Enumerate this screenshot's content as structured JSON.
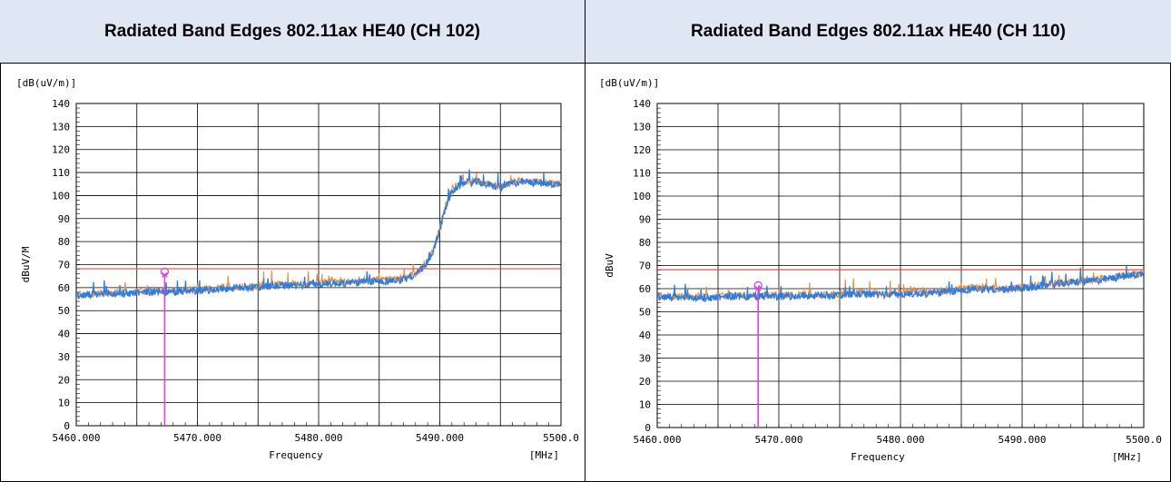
{
  "headers": [
    "Radiated Band Edges 802.11ax HE40 (CH 102)",
    "Radiated Band Edges 802.11ax HE40 (CH 110)"
  ],
  "chart_data": [
    {
      "type": "line",
      "title": "Radiated Band Edges 802.11ax HE40 (CH 102)",
      "unit_label": "[dB(uV/m)]",
      "ylabel": "dBuV/M",
      "xlabel": "Frequency",
      "x_unit": "[MHz]",
      "xlim": [
        5460.0,
        5500.0
      ],
      "ylim": [
        0,
        140
      ],
      "x_ticks": [
        "5460.000",
        "5470.000",
        "5480.000",
        "5490.000",
        "5500.0"
      ],
      "y_ticks": [
        "140",
        "130",
        "120",
        "110",
        "100",
        "90",
        "80",
        "70",
        "60",
        "50",
        "40",
        "30",
        "20",
        "10",
        "0"
      ],
      "limit_line": 68.2,
      "limit_color": "#e05050",
      "marker": {
        "x": 5467.3,
        "y": 66.5,
        "color": "#e040e0"
      },
      "series": [
        {
          "color": "#f08a3c",
          "x": [
            5460,
            5462,
            5464,
            5466,
            5468,
            5470,
            5472,
            5474,
            5476,
            5478,
            5480,
            5482,
            5484,
            5486,
            5487,
            5488,
            5489,
            5489.5,
            5490,
            5490.5,
            5491,
            5492,
            5493,
            5494,
            5495,
            5496,
            5497,
            5498,
            5499,
            5500
          ],
          "values": [
            57,
            57.5,
            58,
            58.5,
            58.5,
            59,
            60,
            60.5,
            61,
            61.5,
            62,
            62.5,
            63,
            63.5,
            64,
            66,
            72,
            77,
            86,
            96,
            103,
            106,
            106.5,
            105,
            104,
            106,
            106.5,
            106,
            105.5,
            105.5
          ]
        },
        {
          "color": "#2a7ee0",
          "x": [
            5460,
            5462,
            5464,
            5466,
            5468,
            5470,
            5472,
            5474,
            5476,
            5478,
            5480,
            5482,
            5484,
            5486,
            5487,
            5488,
            5489,
            5489.5,
            5490,
            5490.5,
            5491,
            5492,
            5493,
            5494,
            5495,
            5496,
            5497,
            5498,
            5499,
            5500
          ],
          "values": [
            56.5,
            57,
            57.5,
            58,
            58,
            58.5,
            59.5,
            60,
            60.5,
            61,
            61.5,
            62,
            62.5,
            63,
            63.5,
            65.5,
            71,
            76,
            85,
            95,
            102,
            105.5,
            106,
            104.5,
            103.5,
            105.5,
            106,
            105.5,
            105,
            105
          ]
        }
      ]
    },
    {
      "type": "line",
      "title": "Radiated Band Edges 802.11ax HE40 (CH 110)",
      "unit_label": "[dB(uV/m)]",
      "ylabel": "dBuV",
      "xlabel": "Frequency",
      "x_unit": "[MHz]",
      "xlim": [
        5460.0,
        5500.0
      ],
      "ylim": [
        0,
        140
      ],
      "x_ticks": [
        "5460.000",
        "5470.000",
        "5480.000",
        "5490.000",
        "5500.0"
      ],
      "y_ticks": [
        "140",
        "130",
        "120",
        "110",
        "100",
        "90",
        "80",
        "70",
        "60",
        "50",
        "40",
        "30",
        "20",
        "10",
        "0"
      ],
      "limit_line": 68.2,
      "limit_color": "#e05050",
      "marker": {
        "x": 5468.3,
        "y": 61.0,
        "color": "#e040e0"
      },
      "series": [
        {
          "color": "#f08a3c",
          "x": [
            5460,
            5462,
            5464,
            5466,
            5468,
            5470,
            5472,
            5474,
            5476,
            5478,
            5480,
            5482,
            5484,
            5486,
            5488,
            5490,
            5492,
            5494,
            5496,
            5498,
            5500
          ],
          "values": [
            57,
            56.5,
            56.5,
            57,
            57,
            57,
            57.5,
            57.5,
            58,
            58,
            58,
            58.5,
            59,
            60.5,
            60,
            60.5,
            62,
            63,
            64,
            65.5,
            67
          ]
        },
        {
          "color": "#2a7ee0",
          "x": [
            5460,
            5462,
            5464,
            5466,
            5468,
            5470,
            5472,
            5474,
            5476,
            5478,
            5480,
            5482,
            5484,
            5486,
            5488,
            5490,
            5492,
            5494,
            5496,
            5498,
            5500
          ],
          "values": [
            56.5,
            56,
            56,
            56.5,
            56.5,
            56.5,
            57,
            57,
            57.5,
            57.5,
            57.5,
            58,
            58.5,
            60,
            59.5,
            60,
            61.5,
            62.5,
            63.5,
            65,
            66.5
          ]
        }
      ]
    }
  ]
}
